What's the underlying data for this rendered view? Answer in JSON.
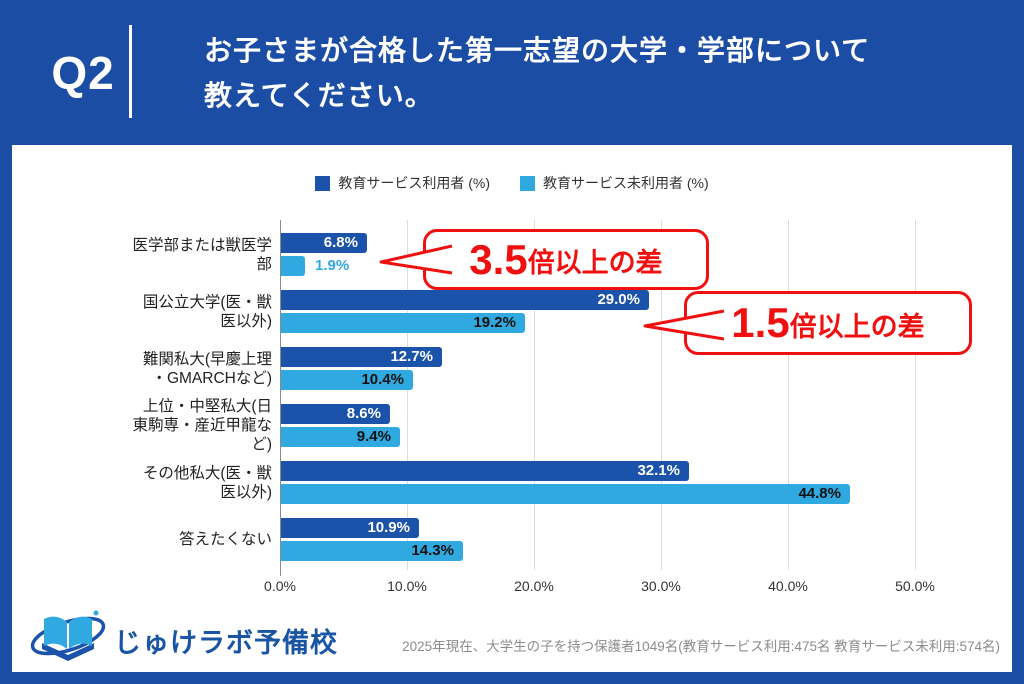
{
  "header": {
    "q_label": "Q2",
    "title": "お子さまが合格した第一志望の大学・学部について\n教えてください。"
  },
  "legend": [
    {
      "label": "教育サービス利用者 (%)",
      "color": "#1c53aa"
    },
    {
      "label": "教育サービス未利用者 (%)",
      "color": "#30a8e0"
    }
  ],
  "chart_data": {
    "type": "bar",
    "orientation": "horizontal",
    "title": "",
    "xlabel": "",
    "ylabel": "",
    "xlim": [
      0,
      50
    ],
    "grid": true,
    "legend_position": "top",
    "xticks": [
      "0.0%",
      "10.0%",
      "20.0%",
      "30.0%",
      "40.0%",
      "50.0%"
    ],
    "categories": [
      "医学部または獣医学\n部",
      "国公立大学(医・獣\n医以外)",
      "難関私大(早慶上理\n・GMARCHなど)",
      "上位・中堅私大(日\n東駒専・産近甲龍な\nど)",
      "その他私大(医・獣\n医以外)",
      "答えたくない"
    ],
    "series": [
      {
        "name": "教育サービス利用者 (%)",
        "color": "#1c53aa",
        "label_color": "#ffffff",
        "values": [
          6.8,
          29.0,
          12.7,
          8.6,
          32.1,
          10.9
        ],
        "labels": [
          "6.8%",
          "29.0%",
          "12.7%",
          "8.6%",
          "32.1%",
          "10.9%"
        ]
      },
      {
        "name": "教育サービス未利用者 (%)",
        "color": "#30a8e0",
        "label_color": "#111111",
        "values": [
          1.9,
          19.2,
          10.4,
          9.4,
          44.8,
          14.3
        ],
        "labels": [
          "1.9%",
          "19.2%",
          "10.4%",
          "9.4%",
          "44.8%",
          "14.3%"
        ]
      }
    ]
  },
  "annotations": [
    {
      "big": "3.5",
      "rest": "倍以上の差",
      "color": "#f01010"
    },
    {
      "big": "1.5",
      "rest": "倍以上の差",
      "color": "#f01010"
    }
  ],
  "footer": {
    "logo_text": "じゅけラボ予備校",
    "source": "2025年現在、大学生の子を持つ保護者1049名(教育サービス利用:475名 教育サービス未利用:574名)"
  },
  "colors": {
    "background": "#1b4da5",
    "panel": "#ffffff",
    "accent_red": "#f01010",
    "gridline": "#dcdcdc",
    "axis": "#8a8a8a"
  }
}
